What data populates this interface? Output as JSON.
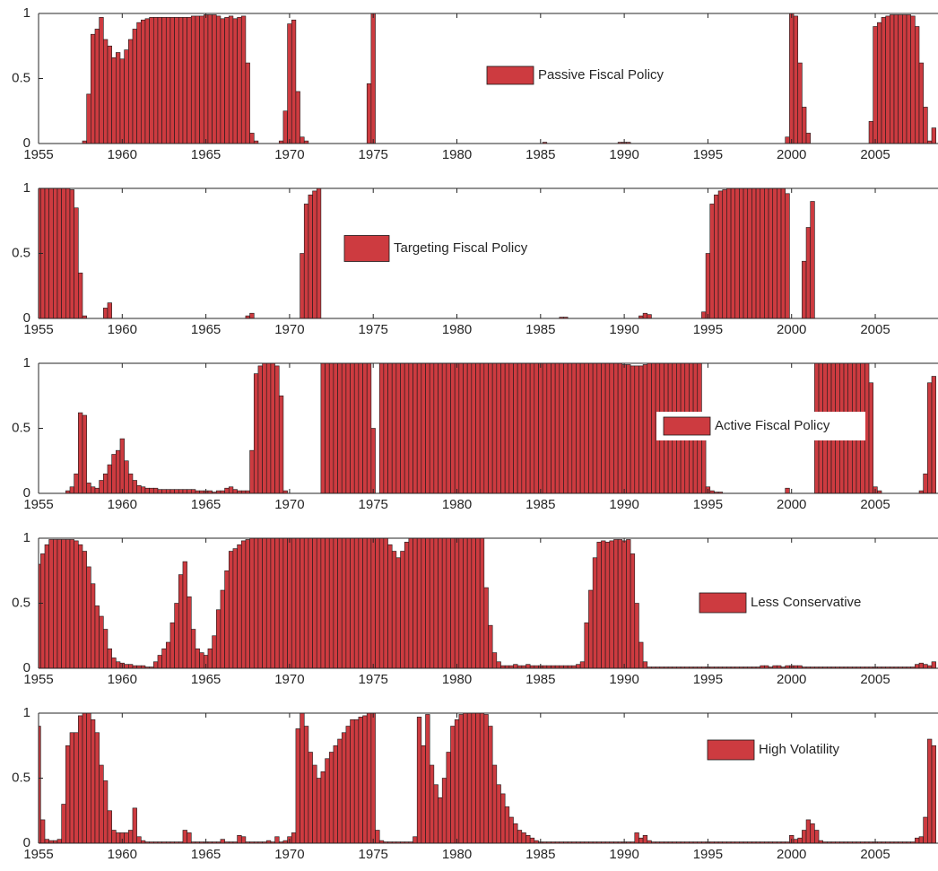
{
  "chart_data": {
    "type": "bar",
    "x": [
      1955,
      1955.25,
      1955.5,
      1955.75,
      1956,
      1956.25,
      1956.5,
      1956.75,
      1957,
      1957.25,
      1957.5,
      1957.75,
      1958,
      1958.25,
      1958.5,
      1958.75,
      1959,
      1959.25,
      1959.5,
      1959.75,
      1960,
      1960.25,
      1960.5,
      1960.75,
      1961,
      1961.25,
      1961.5,
      1961.75,
      1962,
      1962.25,
      1962.5,
      1962.75,
      1963,
      1963.25,
      1963.5,
      1963.75,
      1964,
      1964.25,
      1964.5,
      1964.75,
      1965,
      1965.25,
      1965.5,
      1965.75,
      1966,
      1966.25,
      1966.5,
      1966.75,
      1967,
      1967.25,
      1967.5,
      1967.75,
      1968,
      1968.25,
      1968.5,
      1968.75,
      1969,
      1969.25,
      1969.5,
      1969.75,
      1970,
      1970.25,
      1970.5,
      1970.75,
      1971,
      1971.25,
      1971.5,
      1971.75,
      1972,
      1972.25,
      1972.5,
      1972.75,
      1973,
      1973.25,
      1973.5,
      1973.75,
      1974,
      1974.25,
      1974.5,
      1974.75,
      1975,
      1975.25,
      1975.5,
      1975.75,
      1976,
      1976.25,
      1976.5,
      1976.75,
      1977,
      1977.25,
      1977.5,
      1977.75,
      1978,
      1978.25,
      1978.5,
      1978.75,
      1979,
      1979.25,
      1979.5,
      1979.75,
      1980,
      1980.25,
      1980.5,
      1980.75,
      1981,
      1981.25,
      1981.5,
      1981.75,
      1982,
      1982.25,
      1982.5,
      1982.75,
      1983,
      1983.25,
      1983.5,
      1983.75,
      1984,
      1984.25,
      1984.5,
      1984.75,
      1985,
      1985.25,
      1985.5,
      1985.75,
      1986,
      1986.25,
      1986.5,
      1986.75,
      1987,
      1987.25,
      1987.5,
      1987.75,
      1988,
      1988.25,
      1988.5,
      1988.75,
      1989,
      1989.25,
      1989.5,
      1989.75,
      1990,
      1990.25,
      1990.5,
      1990.75,
      1991,
      1991.25,
      1991.5,
      1991.75,
      1992,
      1992.25,
      1992.5,
      1992.75,
      1993,
      1993.25,
      1993.5,
      1993.75,
      1994,
      1994.25,
      1994.5,
      1994.75,
      1995,
      1995.25,
      1995.5,
      1995.75,
      1996,
      1996.25,
      1996.5,
      1996.75,
      1997,
      1997.25,
      1997.5,
      1997.75,
      1998,
      1998.25,
      1998.5,
      1998.75,
      1999,
      1999.25,
      1999.5,
      1999.75,
      2000,
      2000.25,
      2000.5,
      2000.75,
      2001,
      2001.25,
      2001.5,
      2001.75,
      2002,
      2002.25,
      2002.5,
      2002.75,
      2003,
      2003.25,
      2003.5,
      2003.75,
      2004,
      2004.25,
      2004.5,
      2004.75,
      2005,
      2005.25,
      2005.5,
      2005.75,
      2006,
      2006.25,
      2006.5,
      2006.75,
      2007,
      2007.25,
      2007.5,
      2007.75,
      2008,
      2008.25,
      2008.5
    ],
    "xlim": [
      1955,
      2008.75
    ],
    "xticks": [
      1955,
      1960,
      1965,
      1970,
      1975,
      1980,
      1985,
      1990,
      1995,
      2000,
      2005
    ],
    "ylim": [
      0,
      1
    ],
    "yticks": [
      0,
      0.5,
      1
    ],
    "series": [
      {
        "name": "Passive Fiscal Policy",
        "color": "#cd3b40",
        "values": [
          0,
          0,
          0,
          0,
          0,
          0,
          0,
          0,
          0,
          0,
          0,
          0.02,
          0.38,
          0.84,
          0.88,
          0.97,
          0.8,
          0.75,
          0.66,
          0.7,
          0.65,
          0.72,
          0.8,
          0.88,
          0.93,
          0.95,
          0.96,
          0.97,
          0.97,
          0.97,
          0.97,
          0.97,
          0.97,
          0.97,
          0.97,
          0.97,
          0.97,
          0.98,
          0.98,
          0.98,
          0.99,
          0.99,
          0.99,
          0.98,
          0.96,
          0.97,
          0.98,
          0.96,
          0.97,
          0.98,
          0.62,
          0.08,
          0.02,
          0,
          0,
          0,
          0,
          0,
          0.02,
          0.25,
          0.92,
          0.95,
          0.4,
          0.05,
          0.02,
          0,
          0,
          0,
          0,
          0,
          0,
          0,
          0,
          0,
          0,
          0,
          0,
          0,
          0,
          0.46,
          1,
          0,
          0,
          0,
          0,
          0,
          0,
          0,
          0,
          0,
          0,
          0,
          0,
          0,
          0,
          0,
          0,
          0,
          0,
          0,
          0,
          0,
          0,
          0,
          0,
          0,
          0,
          0,
          0,
          0,
          0,
          0,
          0,
          0,
          0,
          0,
          0,
          0,
          0,
          0,
          0,
          0.01,
          0,
          0,
          0,
          0,
          0,
          0,
          0,
          0,
          0,
          0,
          0,
          0,
          0,
          0,
          0,
          0,
          0,
          0.01,
          0.01,
          0.01,
          0,
          0,
          0,
          0,
          0,
          0,
          0,
          0,
          0,
          0,
          0,
          0,
          0,
          0,
          0,
          0,
          0,
          0,
          0,
          0,
          0,
          0,
          0,
          0,
          0,
          0,
          0,
          0,
          0,
          0,
          0,
          0,
          0,
          0,
          0,
          0,
          0,
          0.05,
          1,
          0.98,
          0.62,
          0.28,
          0.08,
          0,
          0,
          0,
          0,
          0,
          0,
          0,
          0,
          0,
          0,
          0,
          0,
          0,
          0,
          0.17,
          0.9,
          0.93,
          0.97,
          0.98,
          0.99,
          0.99,
          0.99,
          0.99,
          0.99,
          0.98,
          0.9,
          0.62,
          0.28,
          0.02,
          0.12
        ]
      },
      {
        "name": "Targeting Fiscal Policy",
        "color": "#cd3b40",
        "values": [
          1,
          1,
          1,
          1,
          1,
          1,
          1,
          1,
          0.99,
          0.85,
          0.35,
          0.02,
          0,
          0,
          0,
          0,
          0.08,
          0.12,
          0,
          0,
          0,
          0,
          0,
          0,
          0,
          0,
          0,
          0,
          0,
          0,
          0,
          0,
          0,
          0,
          0,
          0,
          0,
          0,
          0,
          0,
          0,
          0,
          0,
          0,
          0,
          0,
          0,
          0,
          0,
          0,
          0.02,
          0.04,
          0,
          0,
          0,
          0,
          0,
          0,
          0,
          0,
          0,
          0,
          0,
          0.5,
          0.88,
          0.95,
          0.98,
          1,
          0,
          0,
          0,
          0,
          0,
          0,
          0,
          0,
          0,
          0,
          0,
          0,
          0,
          0,
          0,
          0,
          0,
          0,
          0,
          0,
          0,
          0,
          0,
          0,
          0,
          0,
          0,
          0,
          0,
          0,
          0,
          0,
          0,
          0,
          0,
          0,
          0,
          0,
          0,
          0,
          0,
          0,
          0,
          0,
          0,
          0,
          0,
          0,
          0,
          0,
          0,
          0,
          0,
          0,
          0,
          0,
          0,
          0.01,
          0.01,
          0,
          0,
          0,
          0,
          0,
          0,
          0,
          0,
          0,
          0,
          0,
          0,
          0,
          0,
          0,
          0,
          0,
          0.02,
          0.04,
          0.03,
          0,
          0,
          0,
          0,
          0,
          0,
          0,
          0,
          0,
          0,
          0,
          0,
          0.05,
          0.5,
          0.88,
          0.95,
          0.98,
          0.99,
          1,
          1,
          1,
          1,
          1,
          1,
          1,
          1,
          1,
          1,
          1,
          1,
          1,
          1,
          0.96,
          0,
          0,
          0,
          0.44,
          0.7,
          0.9,
          0,
          0,
          0,
          0,
          0,
          0,
          0,
          0,
          0,
          0,
          0,
          0,
          0,
          0,
          0,
          0,
          0,
          0,
          0,
          0,
          0,
          0,
          0,
          0,
          0,
          0,
          0,
          0,
          0
        ]
      },
      {
        "name": "Active Fiscal Policy",
        "color": "#cd3b40",
        "values": [
          0,
          0,
          0,
          0,
          0,
          0,
          0,
          0.02,
          0.05,
          0.15,
          0.62,
          0.6,
          0.08,
          0.05,
          0.04,
          0.1,
          0.15,
          0.22,
          0.3,
          0.33,
          0.42,
          0.25,
          0.15,
          0.1,
          0.06,
          0.05,
          0.04,
          0.04,
          0.04,
          0.03,
          0.03,
          0.03,
          0.03,
          0.03,
          0.03,
          0.03,
          0.03,
          0.03,
          0.02,
          0.02,
          0.02,
          0.02,
          0.01,
          0.02,
          0.02,
          0.04,
          0.05,
          0.03,
          0.02,
          0.02,
          0.02,
          0.33,
          0.92,
          0.98,
          1,
          1,
          1,
          0.98,
          0.75,
          0.02,
          0,
          0,
          0,
          0,
          0,
          0,
          0,
          0,
          1,
          1,
          1,
          1,
          1,
          1,
          1,
          1,
          1,
          1,
          1,
          1,
          0.5,
          0,
          1,
          1,
          1,
          1,
          1,
          1,
          1,
          1,
          1,
          1,
          1,
          1,
          1,
          1,
          1,
          1,
          1,
          1,
          1,
          1,
          1,
          1,
          1,
          1,
          1,
          1,
          1,
          1,
          1,
          1,
          1,
          1,
          1,
          1,
          1,
          1,
          1,
          1,
          1,
          1,
          1,
          1,
          1,
          1,
          1,
          1,
          1,
          1,
          1,
          1,
          1,
          1,
          1,
          1,
          1,
          1,
          1,
          1,
          0.99,
          0.99,
          0.98,
          0.98,
          0.98,
          0.99,
          1,
          1,
          1,
          1,
          1,
          1,
          1,
          1,
          1,
          1,
          1,
          1,
          1,
          0.55,
          0.05,
          0.02,
          0.01,
          0.01,
          0,
          0,
          0,
          0,
          0,
          0,
          0,
          0,
          0,
          0,
          0,
          0,
          0,
          0,
          0,
          0.04,
          0,
          0,
          0,
          0,
          0,
          0,
          1,
          1,
          1,
          1,
          1,
          1,
          1,
          1,
          1,
          1,
          1,
          1,
          1,
          0.85,
          0.05,
          0.02,
          0,
          0,
          0,
          0,
          0,
          0,
          0,
          0,
          0,
          0.02,
          0.15,
          0.85,
          0.9
        ]
      },
      {
        "name": "Less Conservative",
        "color": "#cd3b40",
        "values": [
          0.8,
          0.88,
          0.95,
          0.99,
          0.99,
          0.99,
          0.99,
          0.99,
          0.99,
          0.98,
          0.95,
          0.9,
          0.78,
          0.65,
          0.48,
          0.4,
          0.3,
          0.15,
          0.08,
          0.05,
          0.04,
          0.03,
          0.03,
          0.02,
          0.02,
          0.02,
          0.01,
          0.01,
          0.05,
          0.1,
          0.15,
          0.2,
          0.35,
          0.5,
          0.72,
          0.82,
          0.55,
          0.3,
          0.15,
          0.12,
          0.1,
          0.15,
          0.25,
          0.45,
          0.6,
          0.75,
          0.9,
          0.92,
          0.95,
          0.98,
          0.99,
          1,
          1,
          1,
          1,
          1,
          1,
          1,
          1,
          1,
          1,
          1,
          1,
          1,
          1,
          1,
          1,
          1,
          1,
          1,
          1,
          1,
          1,
          1,
          1,
          1,
          1,
          1,
          1,
          1,
          1,
          1,
          1,
          1,
          0.95,
          0.9,
          0.85,
          0.9,
          0.97,
          1,
          1,
          1,
          1,
          1,
          1,
          1,
          1,
          1,
          1,
          1,
          1,
          1,
          1,
          1,
          1,
          1,
          1,
          0.62,
          0.33,
          0.12,
          0.05,
          0.02,
          0.02,
          0.02,
          0.03,
          0.02,
          0.02,
          0.03,
          0.02,
          0.02,
          0.02,
          0.02,
          0.02,
          0.02,
          0.02,
          0.02,
          0.02,
          0.02,
          0.02,
          0.03,
          0.05,
          0.35,
          0.6,
          0.85,
          0.97,
          0.98,
          0.97,
          0.98,
          0.99,
          0.99,
          0.98,
          0.99,
          0.88,
          0.5,
          0.2,
          0.05,
          0.01,
          0.01,
          0.01,
          0.01,
          0.01,
          0.01,
          0.01,
          0.01,
          0.01,
          0.01,
          0.01,
          0.01,
          0.01,
          0.01,
          0.01,
          0.01,
          0.01,
          0.01,
          0.01,
          0.01,
          0.01,
          0.01,
          0.01,
          0.01,
          0.01,
          0.01,
          0.01,
          0.02,
          0.02,
          0.01,
          0.02,
          0.02,
          0.01,
          0.02,
          0.02,
          0.02,
          0.02,
          0.01,
          0.01,
          0.01,
          0.01,
          0.01,
          0.01,
          0.01,
          0.01,
          0.01,
          0.01,
          0.01,
          0.01,
          0.01,
          0.01,
          0.01,
          0.01,
          0.01,
          0.01,
          0.01,
          0.01,
          0.01,
          0.01,
          0.01,
          0.01,
          0.01,
          0.01,
          0.01,
          0.03,
          0.04,
          0.03,
          0.02,
          0.05
        ]
      },
      {
        "name": "High Volatility",
        "color": "#cd3b40",
        "values": [
          0.9,
          0.18,
          0.03,
          0.02,
          0.02,
          0.03,
          0.3,
          0.75,
          0.85,
          0.85,
          0.98,
          1,
          1,
          0.95,
          0.85,
          0.6,
          0.48,
          0.25,
          0.1,
          0.08,
          0.08,
          0.08,
          0.1,
          0.27,
          0.05,
          0.02,
          0.01,
          0.01,
          0.01,
          0.01,
          0.01,
          0.01,
          0.01,
          0.01,
          0.01,
          0.1,
          0.08,
          0.01,
          0.01,
          0.01,
          0.01,
          0.01,
          0.01,
          0.01,
          0.03,
          0.01,
          0.01,
          0.01,
          0.06,
          0.05,
          0.01,
          0.01,
          0.01,
          0.01,
          0.01,
          0.02,
          0.01,
          0.05,
          0.01,
          0.02,
          0.05,
          0.08,
          0.88,
          1,
          0.9,
          0.7,
          0.6,
          0.5,
          0.55,
          0.65,
          0.7,
          0.75,
          0.8,
          0.85,
          0.9,
          0.95,
          0.95,
          0.97,
          0.98,
          1,
          1,
          0.1,
          0.02,
          0.01,
          0.01,
          0.01,
          0.01,
          0.01,
          0.01,
          0.01,
          0.05,
          0.97,
          0.75,
          0.99,
          0.6,
          0.45,
          0.35,
          0.5,
          0.7,
          0.9,
          0.95,
          0.99,
          1,
          1,
          1,
          1,
          1,
          0.99,
          0.9,
          0.6,
          0.45,
          0.38,
          0.28,
          0.2,
          0.15,
          0.1,
          0.08,
          0.06,
          0.04,
          0.02,
          0.01,
          0.01,
          0.01,
          0.01,
          0.01,
          0.01,
          0.01,
          0.01,
          0.01,
          0.01,
          0.01,
          0.01,
          0.01,
          0.01,
          0.01,
          0.01,
          0.01,
          0.01,
          0.01,
          0.01,
          0.01,
          0.01,
          0.01,
          0.08,
          0.04,
          0.06,
          0.02,
          0.01,
          0.01,
          0.01,
          0.01,
          0.01,
          0.01,
          0.01,
          0.01,
          0.01,
          0.01,
          0.01,
          0.01,
          0.01,
          0.01,
          0.01,
          0.01,
          0.01,
          0.01,
          0.01,
          0.01,
          0.01,
          0.01,
          0.01,
          0.01,
          0.01,
          0.01,
          0.01,
          0.01,
          0.01,
          0.01,
          0.01,
          0.01,
          0.01,
          0.06,
          0.03,
          0.04,
          0.1,
          0.18,
          0.15,
          0.1,
          0.02,
          0.01,
          0.01,
          0.01,
          0.01,
          0.01,
          0.01,
          0.01,
          0.01,
          0.01,
          0.01,
          0.01,
          0.01,
          0.01,
          0.01,
          0.01,
          0.01,
          0.01,
          0.01,
          0.01,
          0.01,
          0.01,
          0.01,
          0.04,
          0.05,
          0.2,
          0.8,
          0.75
        ]
      }
    ]
  }
}
